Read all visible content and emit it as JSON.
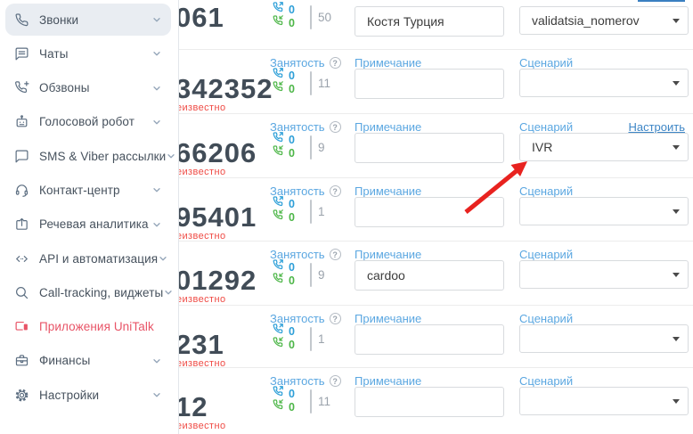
{
  "sidebar": {
    "items": [
      {
        "label": "Звонки",
        "icon": "phone-icon",
        "name": "calls",
        "active": true,
        "chevron": true
      },
      {
        "label": "Чаты",
        "icon": "chat-icon",
        "name": "chats",
        "chevron": true
      },
      {
        "label": "Обзвоны",
        "icon": "phone-plus-icon",
        "name": "dialer",
        "chevron": true
      },
      {
        "label": "Голосовой робот",
        "icon": "robot-icon",
        "name": "voice-robot",
        "chevron": true
      },
      {
        "label": "SMS & Viber рассылки",
        "icon": "message-icon",
        "name": "sms-viber",
        "chevron": true
      },
      {
        "label": "Контакт-центр",
        "icon": "headset-icon",
        "name": "contact-center",
        "chevron": true
      },
      {
        "label": "Речевая аналитика",
        "icon": "speech-analytics-icon",
        "name": "speech-analytics",
        "chevron": true
      },
      {
        "label": "API и автоматизация",
        "icon": "code-icon",
        "name": "api",
        "chevron": true
      },
      {
        "label": "Call-tracking, виджеты",
        "icon": "search-icon",
        "name": "call-tracking",
        "chevron": true
      },
      {
        "label": "Приложения UniTalk",
        "icon": "apps-icon",
        "name": "unitalk-apps",
        "chevron": false,
        "accent": true
      },
      {
        "label": "Финансы",
        "icon": "briefcase-icon",
        "name": "finance",
        "chevron": true
      },
      {
        "label": "Настройки",
        "icon": "gear-icon",
        "name": "settings",
        "chevron": true
      }
    ]
  },
  "labels": {
    "occupancy": "Занятость",
    "note": "Примечание",
    "scenario": "Сценарий",
    "configure": "Настроить",
    "unknown": "еизвестно"
  },
  "rows": [
    {
      "number": "061",
      "out": "0",
      "in": "0",
      "total": "50",
      "note": "Костя Турция",
      "scenario": "validatsia_nomerov",
      "unknown": false,
      "configure": false
    },
    {
      "number": "342352",
      "out": "0",
      "in": "0",
      "total": "11",
      "note": "",
      "scenario": "",
      "unknown": true,
      "configure": false
    },
    {
      "number": "66206",
      "out": "0",
      "in": "0",
      "total": "9",
      "note": "",
      "scenario": "IVR",
      "unknown": true,
      "configure": true,
      "arrow_target": true
    },
    {
      "number": "95401",
      "out": "0",
      "in": "0",
      "total": "1",
      "note": "",
      "scenario": "",
      "unknown": true,
      "configure": false
    },
    {
      "number": "01292",
      "out": "0",
      "in": "0",
      "total": "9",
      "note": "cardoo",
      "scenario": "",
      "unknown": true,
      "configure": false
    },
    {
      "number": "231",
      "out": "0",
      "in": "0",
      "total": "1",
      "note": "",
      "scenario": "",
      "unknown": true,
      "configure": false
    },
    {
      "number": "12",
      "out": "0",
      "in": "0",
      "total": "11",
      "note": "",
      "scenario": "",
      "unknown": true,
      "configure": false
    }
  ],
  "colors": {
    "accent_pink": "#e85467",
    "label_blue": "#5ba7e1",
    "link_blue": "#3e86c6",
    "outgoing_call_blue": "#2d9fd8",
    "incoming_call_green": "#4db648",
    "unknown_red": "#ef4b45",
    "arrow_red": "#e8221f",
    "number_dark": "#414c57",
    "active_item_bg": "#e9edf2"
  }
}
